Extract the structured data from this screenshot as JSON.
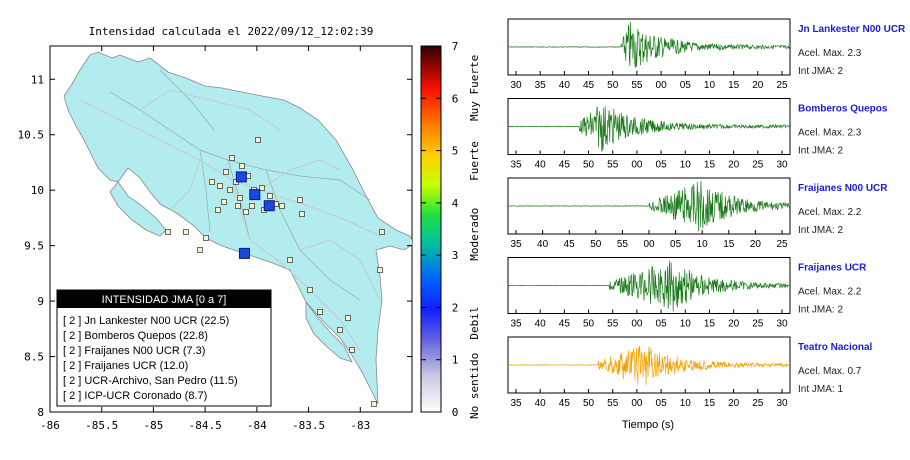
{
  "map": {
    "title": "Intensidad calculada el 2022/09/12_12:02:39",
    "xlim": [
      -86,
      -82.5
    ],
    "ylim": [
      8,
      11.3
    ],
    "xticks": [
      -86,
      -85.5,
      -85,
      -84.5,
      -84,
      -83.5,
      -83
    ],
    "yticks": [
      8,
      8.5,
      9,
      9.5,
      10,
      10.5,
      11
    ],
    "big_stations": [
      {
        "lon": -84.15,
        "lat": 10.12
      },
      {
        "lon": -84.02,
        "lat": 9.96
      },
      {
        "lon": -83.88,
        "lat": 9.86
      },
      {
        "lon": -84.12,
        "lat": 9.43
      }
    ]
  },
  "colorbar": {
    "ticks": [
      "0",
      "1",
      "2",
      "3",
      "4",
      "5",
      "6",
      "7"
    ],
    "labels": [
      "No sentido",
      "Debil",
      "Moderado",
      "Fuerte",
      "Muy Fuerte"
    ],
    "colors": [
      "#ffffff",
      "#9090ff",
      "#2030ff",
      "#00ff80",
      "#ffff00",
      "#ff8000",
      "#ff0000",
      "#400000"
    ]
  },
  "legend": {
    "header": "INTENSIDAD JMA [0 a 7]",
    "items": [
      "[ 2 ]  Jn Lankester N00 UCR (22.5)",
      "[ 2 ]  Bomberos Quepos (22.8)",
      "[ 2 ]  Fraijanes N00 UCR (7.3)",
      "[ 2 ]  Fraijanes UCR (12.0)",
      "[ 2 ]  UCR-Archivo, San Pedro (11.5)",
      "[ 2 ]  ICP-UCR Coronado (8.7)"
    ]
  },
  "waveforms": {
    "xlabel": "Tiempo (s)",
    "panels": [
      {
        "name": "Jn Lankester N00 UCR",
        "accel": "Acel. Max. 2.3",
        "jma": "Int JMA: 2",
        "color": "#1a7a1a",
        "onset": 0.4,
        "peak": 0.43,
        "amp": 1.0,
        "ticks": [
          "30",
          "35",
          "40",
          "45",
          "50",
          "55",
          "00",
          "05",
          "10",
          "15",
          "20",
          "25"
        ]
      },
      {
        "name": "Bomberos Quepos",
        "accel": "Acel. Max. 2.3",
        "jma": "Int JMA: 2",
        "color": "#1a7a1a",
        "onset": 0.25,
        "peak": 0.33,
        "amp": 0.95,
        "ticks": [
          "35",
          "40",
          "45",
          "50",
          "55",
          "00",
          "05",
          "10",
          "15",
          "20",
          "25",
          "30"
        ]
      },
      {
        "name": "Fraijanes N00 UCR",
        "accel": "Acel. Max. 2.2",
        "jma": "Int JMA: 2",
        "color": "#1a7a1a",
        "onset": 0.5,
        "peak": 0.68,
        "amp": 1.0,
        "ticks": [
          "35",
          "40",
          "45",
          "50",
          "55",
          "00",
          "05",
          "10",
          "15",
          "20",
          "25"
        ]
      },
      {
        "name": "Fraijanes UCR",
        "accel": "Acel. Max. 2.2",
        "jma": "Int JMA: 2",
        "color": "#1a7a1a",
        "onset": 0.36,
        "peak": 0.58,
        "amp": 1.0,
        "ticks": [
          "35",
          "40",
          "45",
          "50",
          "55",
          "00",
          "05",
          "10",
          "15",
          "20",
          "25",
          "30"
        ]
      },
      {
        "name": "Teatro Nacional",
        "accel": "Acel. Max. 0.7",
        "jma": "Int JMA: 1",
        "color": "#f5a000",
        "onset": 0.32,
        "peak": 0.48,
        "amp": 0.85,
        "ticks": [
          "35",
          "40",
          "45",
          "50",
          "55",
          "00",
          "05",
          "10",
          "15",
          "20",
          "25",
          "30"
        ]
      }
    ]
  }
}
